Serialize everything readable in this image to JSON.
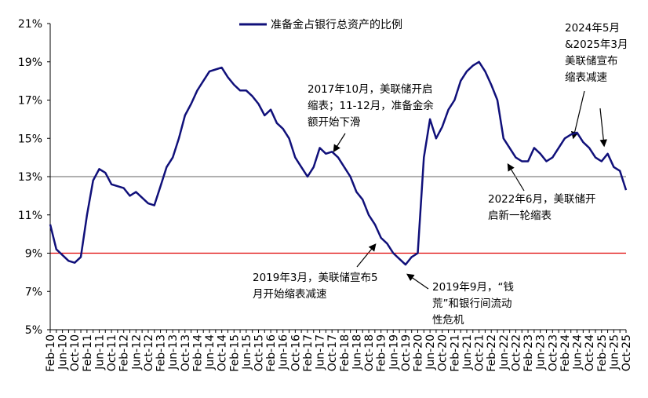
{
  "chart_data": {
    "type": "line",
    "legend": "准备金占银行总资产的比例",
    "categories": [
      "Feb-10",
      null,
      "Jun-10",
      null,
      "Oct-10",
      null,
      "Feb-11",
      null,
      "Jun-11",
      null,
      "Oct-11",
      null,
      "Feb-12",
      null,
      "Jun-12",
      null,
      "Oct-12",
      null,
      "Feb-13",
      null,
      "Jun-13",
      null,
      "Oct-13",
      null,
      "Feb-14",
      null,
      "Jun-14",
      null,
      "Oct-14",
      null,
      "Feb-15",
      null,
      "Jun-15",
      null,
      "Oct-15",
      null,
      "Feb-16",
      null,
      "Jun-16",
      null,
      "Oct-16",
      null,
      "Feb-17",
      null,
      "Jun-17",
      null,
      "Oct-17",
      null,
      "Feb-18",
      null,
      "Jun-18",
      null,
      "Oct-18",
      null,
      "Feb-19",
      null,
      "Jun-19",
      null,
      "Oct-19",
      null,
      "Feb-20",
      null,
      "Jun-20",
      null,
      "Oct-20",
      null,
      "Feb-21",
      null,
      "Jun-21",
      null,
      "Oct-21",
      null,
      "Feb-22",
      null,
      "Jun-22",
      null,
      "Oct-22",
      null,
      "Feb-23",
      null,
      "Jun-23",
      null,
      "Oct-23",
      null,
      "Feb-24",
      null,
      "Jun-24",
      null,
      "Oct-24",
      null,
      "Feb-25",
      null,
      "Jun-25",
      null,
      "Oct-25"
    ],
    "series": [
      {
        "name": "准备金占银行总资产的比例",
        "color": "#10107a",
        "values": [
          10.5,
          9.2,
          8.9,
          8.6,
          8.5,
          8.8,
          11.0,
          12.8,
          13.4,
          13.2,
          12.6,
          12.5,
          12.4,
          12.0,
          12.2,
          11.9,
          11.6,
          11.5,
          12.5,
          13.5,
          14.0,
          15.0,
          16.2,
          16.8,
          17.5,
          18.0,
          18.5,
          18.6,
          18.7,
          18.2,
          17.8,
          17.5,
          17.5,
          17.2,
          16.8,
          16.2,
          16.5,
          15.8,
          15.5,
          15.0,
          14.0,
          13.5,
          13.0,
          13.5,
          14.5,
          14.2,
          14.3,
          14.0,
          13.5,
          13.0,
          12.2,
          11.8,
          11.0,
          10.5,
          9.8,
          9.5,
          9.0,
          8.7,
          8.4,
          8.8,
          9.0,
          14.0,
          16.0,
          15.0,
          15.6,
          16.5,
          17.0,
          18.0,
          18.5,
          18.8,
          19.0,
          18.5,
          17.8,
          17.0,
          15.0,
          14.5,
          14.0,
          13.8,
          13.8,
          14.5,
          14.2,
          13.8,
          14.0,
          14.5,
          15.0,
          15.2,
          15.3,
          14.8,
          14.5,
          14.0,
          13.8,
          14.2,
          13.5,
          13.3,
          12.3
        ]
      }
    ],
    "ylim": [
      5,
      21
    ],
    "yticks": [
      {
        "value": 5,
        "label": "5%"
      },
      {
        "value": 7,
        "label": "7%"
      },
      {
        "value": 9,
        "label": "9%"
      },
      {
        "value": 11,
        "label": "11%"
      },
      {
        "value": 13,
        "label": "13%"
      },
      {
        "value": 15,
        "label": "15%"
      },
      {
        "value": 17,
        "label": "17%"
      },
      {
        "value": 19,
        "label": "19%"
      },
      {
        "value": 21,
        "label": "21%"
      }
    ],
    "reference_lines": [
      {
        "value": 13,
        "color": "#808080"
      },
      {
        "value": 9,
        "color": "#e00000"
      }
    ],
    "annotations": [
      {
        "lines": [
          "2017年10月，美联储开启",
          "缩表；11-12月，准备金余",
          "额开始下滑"
        ]
      },
      {
        "lines": [
          "2022年6月，美联储开",
          "启新一轮缩表"
        ]
      },
      {
        "lines": [
          "2024年5月",
          "&2025年3月",
          "美联储宣布",
          "缩表减速"
        ]
      },
      {
        "lines": [
          "2019年3月，美联储宣布5",
          "月开始缩表减速"
        ]
      },
      {
        "lines": [
          "2019年9月，“钱",
          "荒”和银行间流动",
          "性危机"
        ]
      }
    ]
  }
}
